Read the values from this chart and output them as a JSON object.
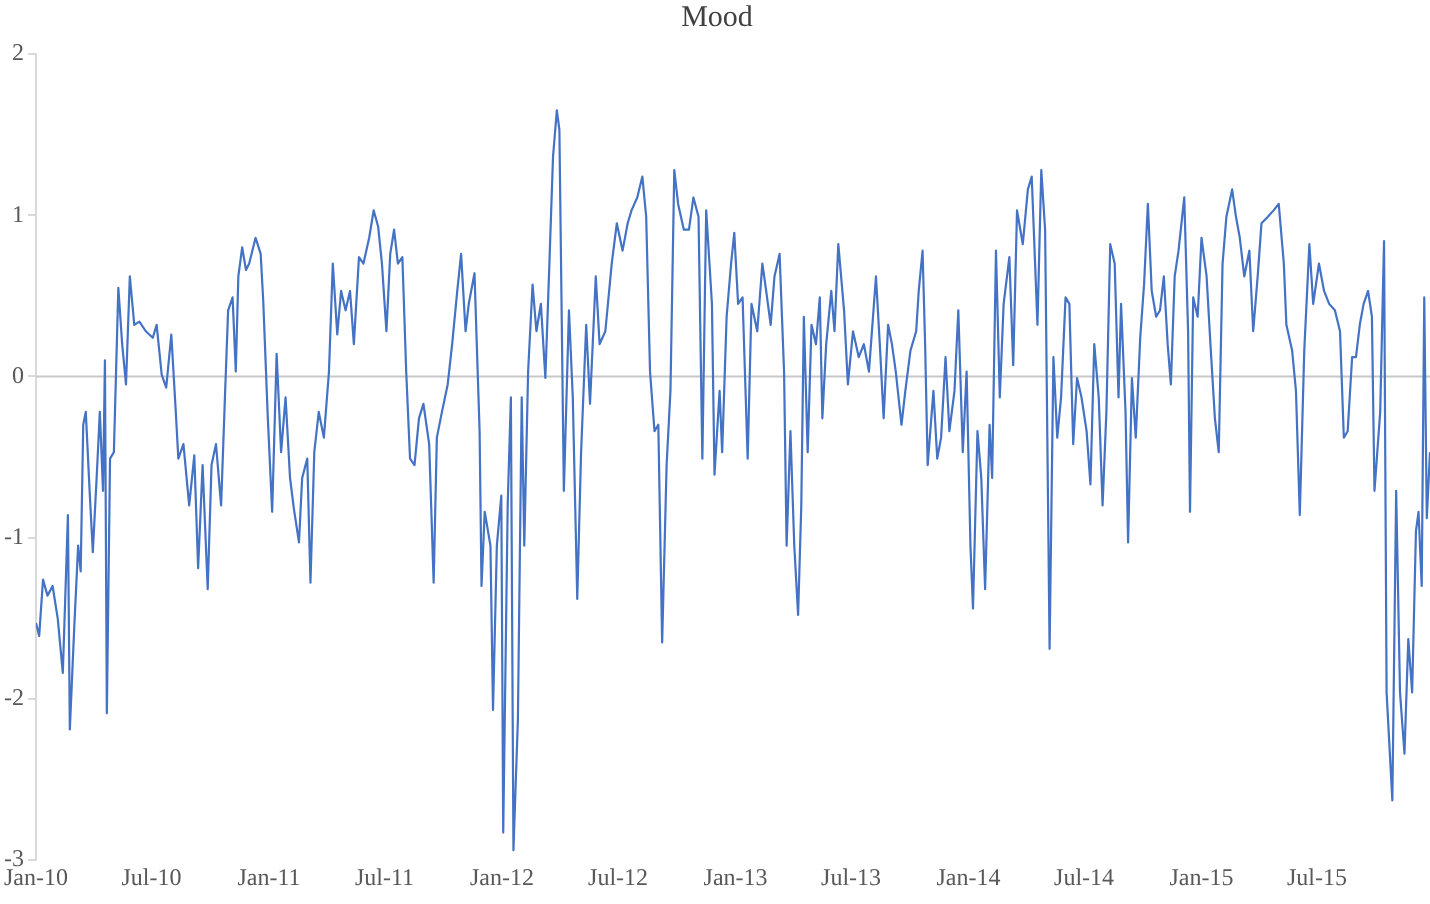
{
  "chart_data": {
    "type": "line",
    "title": "Mood",
    "xlim": [
      "2010-01-01",
      "2015-12-25"
    ],
    "xticks": [
      {
        "value": "2010-01-01",
        "label": "Jan-10"
      },
      {
        "value": "2010-07-01",
        "label": "Jul-10"
      },
      {
        "value": "2011-01-01",
        "label": "Jan-11"
      },
      {
        "value": "2011-07-01",
        "label": "Jul-11"
      },
      {
        "value": "2012-01-01",
        "label": "Jan-12"
      },
      {
        "value": "2012-07-01",
        "label": "Jul-12"
      },
      {
        "value": "2013-01-01",
        "label": "Jan-13"
      },
      {
        "value": "2013-07-01",
        "label": "Jul-13"
      },
      {
        "value": "2014-01-01",
        "label": "Jan-14"
      },
      {
        "value": "2014-07-01",
        "label": "Jul-14"
      },
      {
        "value": "2015-01-01",
        "label": "Jan-15"
      },
      {
        "value": "2015-07-01",
        "label": "Jul-15"
      }
    ],
    "ylim": [
      -3,
      2
    ],
    "yticks": [
      -3,
      -2,
      -1,
      0,
      1,
      2
    ],
    "grid": false,
    "legend": false,
    "marker": "none",
    "line_style": "solid",
    "ref_lines": [
      {
        "axis": "y",
        "value": 0,
        "color": "#c8c8c8"
      }
    ],
    "x": [
      "2010-01-01",
      "2010-01-06",
      "2010-01-12",
      "2010-01-19",
      "2010-01-27",
      "2010-02-04",
      "2010-02-12",
      "2010-02-17",
      "2010-02-20",
      "2010-02-23",
      "2010-03-02",
      "2010-03-08",
      "2010-03-12",
      "2010-03-16",
      "2010-03-20",
      "2010-03-26",
      "2010-03-31",
      "2010-04-06",
      "2010-04-11",
      "2010-04-16",
      "2010-04-19",
      "2010-04-22",
      "2010-04-27",
      "2010-05-03",
      "2010-05-10",
      "2010-05-16",
      "2010-05-22",
      "2010-05-28",
      "2010-06-04",
      "2010-06-12",
      "2010-06-22",
      "2010-07-03",
      "2010-07-09",
      "2010-07-17",
      "2010-07-24",
      "2010-08-01",
      "2010-08-08",
      "2010-08-12",
      "2010-08-20",
      "2010-08-29",
      "2010-09-06",
      "2010-09-12",
      "2010-09-19",
      "2010-09-27",
      "2010-10-03",
      "2010-10-10",
      "2010-10-18",
      "2010-10-24",
      "2010-10-29",
      "2010-11-05",
      "2010-11-10",
      "2010-11-14",
      "2010-11-20",
      "2010-11-26",
      "2010-12-01",
      "2010-12-11",
      "2010-12-19",
      "2010-12-23",
      "2010-12-30",
      "2011-01-06",
      "2011-01-13",
      "2011-01-20",
      "2011-01-27",
      "2011-02-03",
      "2011-02-09",
      "2011-02-17",
      "2011-02-22",
      "2011-03-02",
      "2011-03-07",
      "2011-03-13",
      "2011-03-20",
      "2011-03-28",
      "2011-04-05",
      "2011-04-11",
      "2011-04-18",
      "2011-04-24",
      "2011-05-01",
      "2011-05-08",
      "2011-05-14",
      "2011-05-22",
      "2011-05-29",
      "2011-06-07",
      "2011-06-14",
      "2011-06-21",
      "2011-06-27",
      "2011-07-04",
      "2011-07-10",
      "2011-07-16",
      "2011-07-22",
      "2011-07-29",
      "2011-08-04",
      "2011-08-10",
      "2011-08-17",
      "2011-08-24",
      "2011-08-31",
      "2011-09-09",
      "2011-09-16",
      "2011-09-21",
      "2011-09-29",
      "2011-10-08",
      "2011-10-15",
      "2011-10-23",
      "2011-10-29",
      "2011-11-05",
      "2011-11-10",
      "2011-11-19",
      "2011-11-27",
      "2011-11-30",
      "2011-12-05",
      "2011-12-14",
      "2011-12-18",
      "2011-12-24",
      "2011-12-31",
      "2012-01-03",
      "2012-01-10",
      "2012-01-15",
      "2012-01-19",
      "2012-01-26",
      "2012-02-01",
      "2012-02-05",
      "2012-02-11",
      "2012-02-18",
      "2012-02-24",
      "2012-03-02",
      "2012-03-09",
      "2012-03-15",
      "2012-03-21",
      "2012-03-27",
      "2012-03-31",
      "2012-04-07",
      "2012-04-15",
      "2012-04-21",
      "2012-04-28",
      "2012-05-04",
      "2012-05-12",
      "2012-05-18",
      "2012-05-27",
      "2012-06-02",
      "2012-06-11",
      "2012-06-21",
      "2012-06-29",
      "2012-07-08",
      "2012-07-16",
      "2012-07-22",
      "2012-07-31",
      "2012-08-08",
      "2012-08-14",
      "2012-08-20",
      "2012-08-27",
      "2012-09-02",
      "2012-09-08",
      "2012-09-15",
      "2012-09-21",
      "2012-09-27",
      "2012-10-03",
      "2012-10-12",
      "2012-10-20",
      "2012-10-27",
      "2012-11-04",
      "2012-11-10",
      "2012-11-16",
      "2012-11-25",
      "2012-11-29",
      "2012-12-07",
      "2012-12-11",
      "2012-12-18",
      "2012-12-25",
      "2012-12-30",
      "2013-01-05",
      "2013-01-12",
      "2013-01-20",
      "2013-01-26",
      "2013-02-04",
      "2013-02-12",
      "2013-02-18",
      "2013-02-25",
      "2013-03-03",
      "2013-03-11",
      "2013-03-18",
      "2013-03-22",
      "2013-03-28",
      "2013-04-03",
      "2013-04-09",
      "2013-04-14",
      "2013-04-18",
      "2013-04-24",
      "2013-04-30",
      "2013-05-07",
      "2013-05-13",
      "2013-05-17",
      "2013-05-23",
      "2013-05-31",
      "2013-06-05",
      "2013-06-11",
      "2013-06-20",
      "2013-06-26",
      "2013-07-04",
      "2013-07-13",
      "2013-07-21",
      "2013-07-29",
      "2013-08-09",
      "2013-08-15",
      "2013-08-21",
      "2013-08-28",
      "2013-09-03",
      "2013-09-09",
      "2013-09-18",
      "2013-09-24",
      "2013-10-02",
      "2013-10-11",
      "2013-10-15",
      "2013-10-21",
      "2013-10-25",
      "2013-10-29",
      "2013-11-07",
      "2013-11-13",
      "2013-11-19",
      "2013-11-26",
      "2013-12-02",
      "2013-12-10",
      "2013-12-16",
      "2013-12-23",
      "2013-12-29",
      "2014-01-04",
      "2014-01-08",
      "2014-01-15",
      "2014-01-21",
      "2014-01-27",
      "2014-02-03",
      "2014-02-07",
      "2014-02-13",
      "2014-02-19",
      "2014-02-25",
      "2014-03-06",
      "2014-03-12",
      "2014-03-18",
      "2014-03-27",
      "2014-04-04",
      "2014-04-10",
      "2014-04-19",
      "2014-04-25",
      "2014-05-01",
      "2014-05-08",
      "2014-05-14",
      "2014-05-20",
      "2014-05-26",
      "2014-06-02",
      "2014-06-08",
      "2014-06-14",
      "2014-06-20",
      "2014-06-27",
      "2014-07-05",
      "2014-07-11",
      "2014-07-17",
      "2014-07-24",
      "2014-07-30",
      "2014-08-05",
      "2014-08-11",
      "2014-08-18",
      "2014-08-24",
      "2014-08-28",
      "2014-09-04",
      "2014-09-08",
      "2014-09-14",
      "2014-09-20",
      "2014-09-27",
      "2014-10-03",
      "2014-10-09",
      "2014-10-15",
      "2014-10-22",
      "2014-10-28",
      "2014-11-03",
      "2014-11-09",
      "2014-11-14",
      "2014-11-20",
      "2014-11-26",
      "2014-12-05",
      "2014-12-11",
      "2014-12-14",
      "2014-12-19",
      "2014-12-26",
      "2015-01-01",
      "2015-01-09",
      "2015-01-15",
      "2015-01-22",
      "2015-01-28",
      "2015-02-03",
      "2015-02-09",
      "2015-02-18",
      "2015-02-24",
      "2015-03-02",
      "2015-03-09",
      "2015-03-17",
      "2015-03-23",
      "2015-03-30",
      "2015-04-05",
      "2015-04-15",
      "2015-04-24",
      "2015-05-02",
      "2015-05-10",
      "2015-05-14",
      "2015-05-23",
      "2015-05-29",
      "2015-06-04",
      "2015-06-11",
      "2015-06-19",
      "2015-06-25",
      "2015-07-04",
      "2015-07-12",
      "2015-07-20",
      "2015-07-29",
      "2015-08-06",
      "2015-08-12",
      "2015-08-18",
      "2015-08-25",
      "2015-08-31",
      "2015-09-06",
      "2015-09-12",
      "2015-09-19",
      "2015-09-25",
      "2015-09-29",
      "2015-10-08",
      "2015-10-14",
      "2015-10-18",
      "2015-10-27",
      "2015-11-02",
      "2015-11-08",
      "2015-11-15",
      "2015-11-21",
      "2015-11-27",
      "2015-12-03",
      "2015-12-07",
      "2015-12-12",
      "2015-12-16",
      "2015-12-20",
      "2015-12-25"
    ],
    "series": [
      {
        "color": "#4472c4",
        "values": [
          -1.53,
          -1.61,
          -1.26,
          -1.36,
          -1.3,
          -1.5,
          -1.84,
          -1.23,
          -0.86,
          -2.19,
          -1.55,
          -1.05,
          -1.21,
          -0.3,
          -0.22,
          -0.71,
          -1.09,
          -0.63,
          -0.22,
          -0.71,
          0.1,
          -2.09,
          -0.51,
          -0.47,
          0.55,
          0.2,
          -0.05,
          0.62,
          0.32,
          0.34,
          0.28,
          0.24,
          0.32,
          0.01,
          -0.07,
          0.26,
          -0.22,
          -0.51,
          -0.42,
          -0.8,
          -0.49,
          -1.19,
          -0.55,
          -1.32,
          -0.55,
          -0.42,
          -0.8,
          -0.13,
          0.41,
          0.49,
          0.03,
          0.62,
          0.8,
          0.66,
          0.7,
          0.86,
          0.76,
          0.47,
          -0.24,
          -0.84,
          0.14,
          -0.47,
          -0.13,
          -0.63,
          -0.82,
          -1.03,
          -0.63,
          -0.51,
          -1.28,
          -0.47,
          -0.22,
          -0.38,
          0.03,
          0.7,
          0.26,
          0.53,
          0.41,
          0.53,
          0.2,
          0.74,
          0.7,
          0.86,
          1.03,
          0.93,
          0.7,
          0.28,
          0.76,
          0.91,
          0.7,
          0.74,
          0.03,
          -0.51,
          -0.55,
          -0.26,
          -0.17,
          -0.42,
          -1.28,
          -0.38,
          -0.22,
          -0.05,
          0.2,
          0.53,
          0.76,
          0.28,
          0.45,
          0.64,
          -0.34,
          -1.3,
          -0.84,
          -1.05,
          -2.07,
          -1.05,
          -0.74,
          -2.83,
          -0.8,
          -0.13,
          -2.94,
          -2.13,
          -0.13,
          -1.05,
          0.03,
          0.57,
          0.28,
          0.45,
          -0.01,
          0.66,
          1.36,
          1.65,
          1.53,
          -0.71,
          0.41,
          -0.13,
          -1.38,
          -0.47,
          0.32,
          -0.17,
          0.62,
          0.2,
          0.28,
          0.7,
          0.95,
          0.78,
          0.95,
          1.03,
          1.11,
          1.24,
          0.99,
          0.03,
          -0.34,
          -0.3,
          -1.65,
          -0.55,
          -0.09,
          1.28,
          1.07,
          0.91,
          0.91,
          1.11,
          0.99,
          -0.51,
          1.03,
          0.45,
          -0.61,
          -0.09,
          -0.47,
          0.37,
          0.7,
          0.89,
          0.45,
          0.49,
          -0.51,
          0.45,
          0.28,
          0.7,
          0.53,
          0.32,
          0.62,
          0.76,
          0.03,
          -1.05,
          -0.34,
          -1.05,
          -1.48,
          -0.8,
          0.37,
          -0.47,
          0.32,
          0.2,
          0.49,
          -0.26,
          0.2,
          0.53,
          0.28,
          0.82,
          0.41,
          -0.05,
          0.28,
          0.12,
          0.2,
          0.03,
          0.62,
          0.2,
          -0.26,
          0.32,
          0.2,
          0.03,
          -0.3,
          -0.09,
          0.16,
          0.28,
          0.53,
          0.78,
          0.2,
          -0.55,
          -0.09,
          -0.51,
          -0.38,
          0.12,
          -0.34,
          -0.09,
          0.41,
          -0.47,
          0.03,
          -1.05,
          -1.44,
          -0.34,
          -0.63,
          -1.32,
          -0.3,
          -0.63,
          0.78,
          -0.13,
          0.45,
          0.74,
          0.07,
          1.03,
          0.82,
          1.16,
          1.24,
          0.32,
          1.28,
          0.91,
          -1.69,
          0.12,
          -0.38,
          -0.13,
          0.49,
          0.45,
          -0.42,
          -0.01,
          -0.13,
          -0.34,
          -0.67,
          0.2,
          -0.13,
          -0.8,
          -0.22,
          0.82,
          0.7,
          -0.13,
          0.45,
          -0.22,
          -1.03,
          -0.01,
          -0.38,
          0.24,
          0.57,
          1.07,
          0.53,
          0.37,
          0.41,
          0.62,
          0.2,
          -0.05,
          0.62,
          0.78,
          1.11,
          0.28,
          -0.84,
          0.49,
          0.37,
          0.86,
          0.62,
          0.2,
          -0.26,
          -0.47,
          0.7,
          0.99,
          1.16,
          0.99,
          0.86,
          0.62,
          0.78,
          0.28,
          0.62,
          0.95,
          0.99,
          1.03,
          1.07,
          0.7,
          0.32,
          0.16,
          -0.09,
          -0.86,
          0.16,
          0.82,
          0.45,
          0.7,
          0.53,
          0.45,
          0.41,
          0.28,
          -0.38,
          -0.34,
          0.12,
          0.12,
          0.32,
          0.45,
          0.53,
          0.37,
          -0.71,
          -0.22,
          0.84,
          -1.96,
          -2.63,
          -0.71,
          -1.96,
          -2.34,
          -1.63,
          -1.96,
          -0.96,
          -0.84,
          -1.3,
          0.49,
          -0.88,
          -0.47
        ]
      }
    ]
  }
}
